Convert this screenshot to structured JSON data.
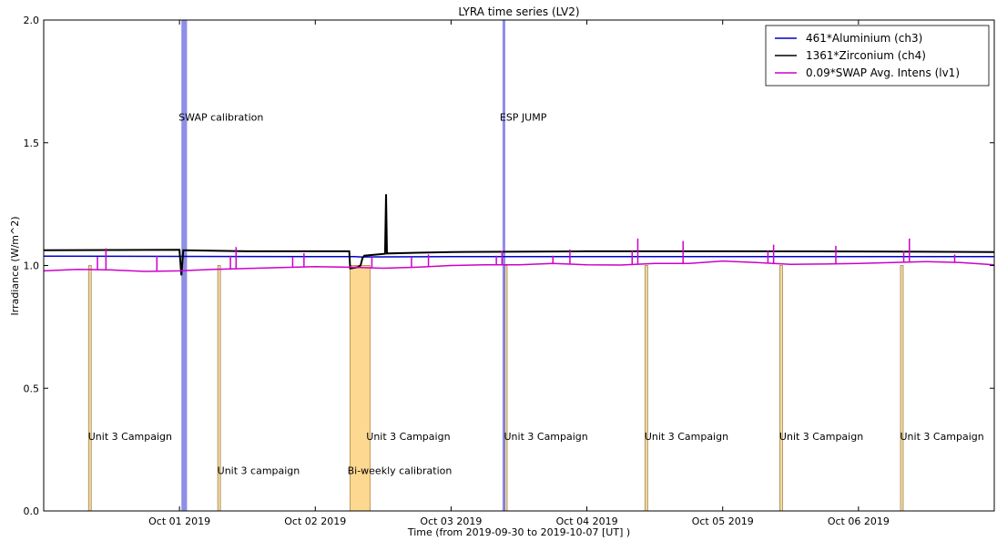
{
  "chart_data": {
    "type": "line",
    "title": "LYRA time series (LV2)",
    "xlabel": "Time (from 2019-09-30 to 2019-10-07 [UT] )",
    "ylabel": "Irradiance (W/m^2)",
    "xlim": [
      "2019-09-30 00:00",
      "2019-10-07 00:00"
    ],
    "ylim": [
      0.0,
      2.0
    ],
    "y_ticks": [
      "0.0",
      "0.5",
      "1.0",
      "1.5",
      "2.0"
    ],
    "x_ticks": [
      {
        "t": "2019-10-01 00:00",
        "label": "Oct 01 2019"
      },
      {
        "t": "2019-10-02 00:00",
        "label": "Oct 02 2019"
      },
      {
        "t": "2019-10-03 00:00",
        "label": "Oct 03 2019"
      },
      {
        "t": "2019-10-04 00:00",
        "label": "Oct 04 2019"
      },
      {
        "t": "2019-10-05 00:00",
        "label": "Oct 05 2019"
      },
      {
        "t": "2019-10-06 00:00",
        "label": "Oct 06 2019"
      }
    ],
    "grid": false,
    "legend_position": "top-right",
    "series": [
      {
        "name": "461*Aluminium (ch3)",
        "color": "#0000cc",
        "points": [
          [
            "2019-09-30 00:00",
            1.038
          ],
          [
            "2019-10-01 00:00",
            1.037
          ],
          [
            "2019-10-02 00:00",
            1.036
          ],
          [
            "2019-10-02 07:00",
            1.036
          ],
          [
            "2019-10-02 08:00",
            1.035
          ],
          [
            "2019-10-03 00:00",
            1.036
          ],
          [
            "2019-10-04 00:00",
            1.036
          ],
          [
            "2019-10-05 00:00",
            1.036
          ],
          [
            "2019-10-06 00:00",
            1.036
          ],
          [
            "2019-10-07 00:00",
            1.036
          ]
        ]
      },
      {
        "name": "1361*Zirconium (ch4)",
        "color": "#000000",
        "points": [
          [
            "2019-09-30 00:00",
            1.062
          ],
          [
            "2019-09-30 12:00",
            1.063
          ],
          [
            "2019-10-01 00:00",
            1.064
          ],
          [
            "2019-10-01 00:20",
            0.96
          ],
          [
            "2019-10-01 00:40",
            1.062
          ],
          [
            "2019-10-01 12:00",
            1.058
          ],
          [
            "2019-10-02 00:00",
            1.058
          ],
          [
            "2019-10-02 06:00",
            1.058
          ],
          [
            "2019-10-02 06:10",
            0.988
          ],
          [
            "2019-10-02 07:30",
            0.993
          ],
          [
            "2019-10-02 08:00",
            1.0
          ],
          [
            "2019-10-02 08:20",
            1.03
          ],
          [
            "2019-10-02 08:40",
            1.04
          ],
          [
            "2019-10-02 11:00",
            1.045
          ],
          [
            "2019-10-02 12:20",
            1.048
          ],
          [
            "2019-10-02 12:30",
            1.29
          ],
          [
            "2019-10-02 12:40",
            1.049
          ],
          [
            "2019-10-02 18:00",
            1.052
          ],
          [
            "2019-10-03 00:00",
            1.055
          ],
          [
            "2019-10-04 00:00",
            1.058
          ],
          [
            "2019-10-05 00:00",
            1.058
          ],
          [
            "2019-10-06 00:00",
            1.057
          ],
          [
            "2019-10-07 00:00",
            1.055
          ]
        ]
      },
      {
        "name": "0.09*SWAP Avg. Intens (lv1)",
        "color": "#cc00cc",
        "points": [
          [
            "2019-09-30 00:00",
            0.978
          ],
          [
            "2019-09-30 06:00",
            0.984
          ],
          [
            "2019-09-30 12:00",
            0.982
          ],
          [
            "2019-09-30 18:00",
            0.976
          ],
          [
            "2019-10-01 00:00",
            0.978
          ],
          [
            "2019-10-01 06:00",
            0.984
          ],
          [
            "2019-10-01 12:00",
            0.988
          ],
          [
            "2019-10-01 18:00",
            0.992
          ],
          [
            "2019-10-02 00:00",
            0.995
          ],
          [
            "2019-10-02 06:00",
            0.993
          ],
          [
            "2019-10-02 12:00",
            0.989
          ],
          [
            "2019-10-02 18:00",
            0.993
          ],
          [
            "2019-10-03 00:00",
            1.0
          ],
          [
            "2019-10-03 06:00",
            1.003
          ],
          [
            "2019-10-03 12:00",
            1.003
          ],
          [
            "2019-10-03 18:00",
            1.008
          ],
          [
            "2019-10-04 00:00",
            1.003
          ],
          [
            "2019-10-04 06:00",
            1.002
          ],
          [
            "2019-10-04 12:00",
            1.008
          ],
          [
            "2019-10-04 18:00",
            1.008
          ],
          [
            "2019-10-05 00:00",
            1.018
          ],
          [
            "2019-10-05 06:00",
            1.012
          ],
          [
            "2019-10-05 12:00",
            1.005
          ],
          [
            "2019-10-05 18:00",
            1.006
          ],
          [
            "2019-10-06 00:00",
            1.008
          ],
          [
            "2019-10-06 06:00",
            1.012
          ],
          [
            "2019-10-06 12:00",
            1.016
          ],
          [
            "2019-10-06 18:00",
            1.012
          ],
          [
            "2019-10-07 00:00",
            1.003
          ]
        ],
        "spikes": [
          [
            "2019-09-30 09:30",
            1.035
          ],
          [
            "2019-09-30 11:00",
            1.07
          ],
          [
            "2019-09-30 20:00",
            1.04
          ],
          [
            "2019-10-01 09:00",
            1.04
          ],
          [
            "2019-10-01 10:00",
            1.075
          ],
          [
            "2019-10-01 20:00",
            1.035
          ],
          [
            "2019-10-01 22:00",
            1.05
          ],
          [
            "2019-10-02 10:00",
            1.035
          ],
          [
            "2019-10-02 17:00",
            1.035
          ],
          [
            "2019-10-02 20:00",
            1.045
          ],
          [
            "2019-10-03 08:00",
            1.04
          ],
          [
            "2019-10-03 09:00",
            1.06
          ],
          [
            "2019-10-03 18:00",
            1.04
          ],
          [
            "2019-10-03 21:00",
            1.065
          ],
          [
            "2019-10-04 08:00",
            1.06
          ],
          [
            "2019-10-04 09:00",
            1.11
          ],
          [
            "2019-10-04 17:00",
            1.1
          ],
          [
            "2019-10-05 08:00",
            1.06
          ],
          [
            "2019-10-05 09:00",
            1.085
          ],
          [
            "2019-10-05 20:00",
            1.08
          ],
          [
            "2019-10-06 08:00",
            1.06
          ],
          [
            "2019-10-06 09:00",
            1.11
          ],
          [
            "2019-10-06 17:00",
            1.045
          ]
        ]
      }
    ],
    "shaded_regions": [
      {
        "start": "2019-10-01 00:20",
        "end": "2019-10-01 01:20",
        "color": "#6a6ae0",
        "label": "SWAP calibration",
        "label_y": 1.605
      },
      {
        "start": "2019-10-03 09:05",
        "end": "2019-10-03 09:35",
        "color": "#6a6ae0",
        "label": "ESP JUMP",
        "label_y": 1.605
      },
      {
        "start": "2019-10-02 06:10",
        "end": "2019-10-02 09:40",
        "color": "#fdd890",
        "label": "Bi-weekly calibration",
        "label_y": 0.165,
        "y_top": 1.0
      }
    ],
    "campaign_markers": [
      {
        "t": "2019-09-30 08:10",
        "label": "Unit 3 Campaign",
        "label_y": 0.305
      },
      {
        "t": "2019-10-01 07:00",
        "label": "Unit 3 campaign",
        "label_y": 0.165
      },
      {
        "t": "2019-10-02 09:20",
        "label": "Unit 3 Campaign",
        "label_y": 0.305
      },
      {
        "t": "2019-10-03 09:40",
        "label": "Unit 3 Campaign",
        "label_y": 0.305
      },
      {
        "t": "2019-10-04 10:30",
        "label": "Unit 3 Campaign",
        "label_y": 0.305
      },
      {
        "t": "2019-10-05 10:20",
        "label": "Unit 3 Campaign",
        "label_y": 0.305
      },
      {
        "t": "2019-10-06 07:40",
        "label": "Unit 3 Campaign",
        "label_y": 0.305
      }
    ],
    "campaign_marker_top": 1.0
  }
}
